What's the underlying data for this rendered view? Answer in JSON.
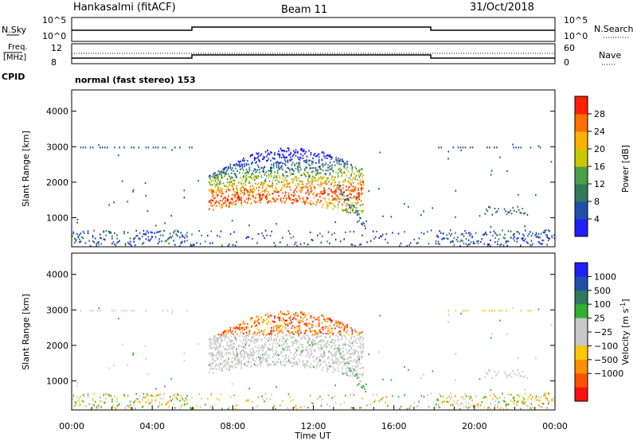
{
  "header": {
    "station": "Hankasalmi (fitACF)",
    "beam": "Beam 11",
    "date": "31/Oct/2018"
  },
  "sky_panel": {
    "left_label": "N.Sky",
    "left_ticks": [
      "10^5",
      "10^0"
    ],
    "right_label": "N.Search",
    "right_ticks": [
      "10^5",
      "10^0"
    ]
  },
  "freq_panel": {
    "left_label_1": "Freq.",
    "left_label_2": "[MHz]",
    "left_ticks": [
      "12",
      "8"
    ],
    "right_label": "Nave",
    "right_ticks": [
      "60",
      "0"
    ]
  },
  "cpid": {
    "label": "CPID",
    "text": "normal (fast stereo) 153"
  },
  "colors": {
    "power_scale": [
      "#1f1fff",
      "#1f4fa8",
      "#2e7a5a",
      "#4aa04a",
      "#c8c800",
      "#ffb000",
      "#ff7000",
      "#ff2000"
    ],
    "velocity_scale": [
      "#ff1010",
      "#ff5000",
      "#ff9000",
      "#ffc800",
      "#c8c8c8",
      "#c8c8c8",
      "#30b030",
      "#2e7a5a",
      "#1f4fa8",
      "#1f1fff"
    ]
  },
  "chart_data": [
    {
      "type": "heatmap",
      "quantity": "Power",
      "ylabel": "Slant Range [km]",
      "ylim": [
        180,
        4600
      ],
      "yticks": [
        "4000",
        "3000",
        "2000",
        "1000"
      ],
      "xlim": [
        "00:00",
        "24:00"
      ],
      "colorbar": {
        "label": "Power [dB]",
        "range": [
          0,
          32
        ],
        "ticks": [
          "28",
          "24",
          "20",
          "16",
          "12",
          "8",
          "4"
        ]
      }
    },
    {
      "type": "heatmap",
      "quantity": "Velocity",
      "ylabel": "Slant Range [km]",
      "ylim": [
        180,
        4600
      ],
      "yticks": [
        "4000",
        "3000",
        "2000",
        "1000"
      ],
      "xlim": [
        "00:00",
        "24:00"
      ],
      "xticks": [
        "00:00",
        "04:00",
        "08:00",
        "12:00",
        "16:00",
        "20:00",
        "00:00"
      ],
      "xlabel": "Time UT",
      "colorbar": {
        "label": "Velocity [m s",
        "label_superscript": "-1",
        "label_close": "]",
        "ticks": [
          "1000",
          "500",
          "100",
          "25",
          "−25",
          "−100",
          "−500",
          "−1000"
        ]
      }
    }
  ]
}
